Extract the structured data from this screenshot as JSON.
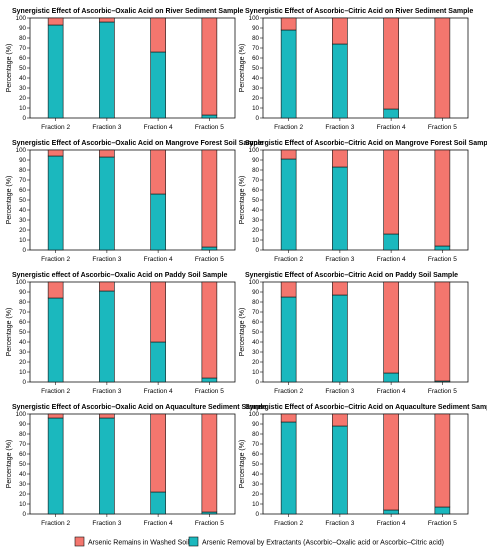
{
  "colors": {
    "remain": "#f4766e",
    "removal": "#1bb8be",
    "frame": "#111111"
  },
  "legend": {
    "remain_label": "Arsenic Remains in Washed Soils",
    "removal_label": "Arsenic Removal by Extractants (Ascorbic–Oxalic acid or Ascorbic–Citric acid)"
  },
  "chart_data": [
    {
      "type": "bar",
      "stacked": true,
      "title": "Synergistic Effect of Ascorbic–Oxalic Acid on River Sediment Sample",
      "ylabel": "Percentage (%)",
      "ylim": [
        0,
        100
      ],
      "yticks": [
        0,
        10,
        20,
        30,
        40,
        50,
        60,
        70,
        80,
        90,
        100
      ],
      "categories": [
        "Fraction 2",
        "Fraction 3",
        "Fraction 4",
        "Fraction 5"
      ],
      "series": [
        {
          "name": "Arsenic Removal by Extractants (Ascorbic–Oxalic acid or Ascorbic–Citric acid)",
          "values": [
            93,
            96,
            66,
            3
          ]
        },
        {
          "name": "Arsenic Remains in Washed Soils",
          "values": [
            7,
            4,
            34,
            97
          ]
        }
      ]
    },
    {
      "type": "bar",
      "stacked": true,
      "title": "Synergistic Effect of Ascorbic–Citric Acid on River Sediment Sample",
      "ylabel": "Percentage (%)",
      "ylim": [
        0,
        100
      ],
      "yticks": [
        0,
        10,
        20,
        30,
        40,
        50,
        60,
        70,
        80,
        90,
        100
      ],
      "categories": [
        "Fraction 2",
        "Fraction 3",
        "Fraction 4",
        "Fraction 5"
      ],
      "series": [
        {
          "name": "Arsenic Removal by Extractants (Ascorbic–Oxalic acid or Ascorbic–Citric acid)",
          "values": [
            88,
            74,
            9,
            0
          ]
        },
        {
          "name": "Arsenic Remains in Washed Soils",
          "values": [
            12,
            26,
            91,
            100
          ]
        }
      ]
    },
    {
      "type": "bar",
      "stacked": true,
      "title": "Synergistic Effect of Ascorbic–Oxalic Acid on Mangrove Forest Soil Sample",
      "ylabel": "Percentage (%)",
      "ylim": [
        0,
        100
      ],
      "yticks": [
        0,
        10,
        20,
        30,
        40,
        50,
        60,
        70,
        80,
        90,
        100
      ],
      "categories": [
        "Fraction 2",
        "Fraction 3",
        "Fraction 4",
        "Fraction 5"
      ],
      "series": [
        {
          "name": "Arsenic Removal by Extractants (Ascorbic–Oxalic acid or Ascorbic–Citric acid)",
          "values": [
            94,
            93,
            56,
            3
          ]
        },
        {
          "name": "Arsenic Remains in Washed Soils",
          "values": [
            6,
            7,
            44,
            97
          ]
        }
      ]
    },
    {
      "type": "bar",
      "stacked": true,
      "title": "Synergistic Effect of Ascorbic–Citric Acid on Mangrove Forest Soil Sample",
      "ylabel": "Percentage (%)",
      "ylim": [
        0,
        100
      ],
      "yticks": [
        0,
        10,
        20,
        30,
        40,
        50,
        60,
        70,
        80,
        90,
        100
      ],
      "categories": [
        "Fraction 2",
        "Fraction 3",
        "Fraction 4",
        "Fraction 5"
      ],
      "series": [
        {
          "name": "Arsenic Removal by Extractants (Ascorbic–Oxalic acid or Ascorbic–Citric acid)",
          "values": [
            91,
            83,
            16,
            4
          ]
        },
        {
          "name": "Arsenic Remains in Washed Soils",
          "values": [
            9,
            17,
            84,
            96
          ]
        }
      ]
    },
    {
      "type": "bar",
      "stacked": true,
      "title": "Synergistic effect of Ascorbic–Oxalic Acid on Paddy Soil Sample",
      "ylabel": "Percentage (%)",
      "ylim": [
        0,
        100
      ],
      "yticks": [
        0,
        10,
        20,
        30,
        40,
        50,
        60,
        70,
        80,
        90,
        100
      ],
      "categories": [
        "Fraction 2",
        "Fraction 3",
        "Fraction 4",
        "Fraction 5"
      ],
      "series": [
        {
          "name": "Arsenic Removal by Extractants (Ascorbic–Oxalic acid or Ascorbic–Citric acid)",
          "values": [
            84,
            91,
            40,
            4
          ]
        },
        {
          "name": "Arsenic Remains in Washed Soils",
          "values": [
            16,
            9,
            60,
            96
          ]
        }
      ]
    },
    {
      "type": "bar",
      "stacked": true,
      "title": "Synergistic Effect of Ascorbic–Citric Acid on Paddy Soil Sample",
      "ylabel": "Percentage (%)",
      "ylim": [
        0,
        100
      ],
      "yticks": [
        0,
        10,
        20,
        30,
        40,
        50,
        60,
        70,
        80,
        90,
        100
      ],
      "categories": [
        "Fraction 2",
        "Fraction 3",
        "Fraction 4",
        "Fraction 5"
      ],
      "series": [
        {
          "name": "Arsenic Removal by Extractants (Ascorbic–Oxalic acid or Ascorbic–Citric acid)",
          "values": [
            85,
            87,
            9,
            1
          ]
        },
        {
          "name": "Arsenic Remains in Washed Soils",
          "values": [
            15,
            13,
            91,
            99
          ]
        }
      ]
    },
    {
      "type": "bar",
      "stacked": true,
      "title": "Synergistic Effect of Ascorbic–Oxalic Acid on Aquaculture Sediment Sample",
      "ylabel": "Percentage (%)",
      "ylim": [
        0,
        100
      ],
      "yticks": [
        0,
        10,
        20,
        30,
        40,
        50,
        60,
        70,
        80,
        90,
        100
      ],
      "categories": [
        "Fraction 2",
        "Fraction 3",
        "Fraction 4",
        "Fraction 5"
      ],
      "series": [
        {
          "name": "Arsenic Removal by Extractants (Ascorbic–Oxalic acid or Ascorbic–Citric acid)",
          "values": [
            96,
            96,
            22,
            2
          ]
        },
        {
          "name": "Arsenic Remains in Washed Soils",
          "values": [
            4,
            4,
            78,
            98
          ]
        }
      ]
    },
    {
      "type": "bar",
      "stacked": true,
      "title": "Synergistic Effect of Ascorbic–Citric Acid on Aquaculture Sediment Sample",
      "ylabel": "Percentage (%)",
      "ylim": [
        0,
        100
      ],
      "yticks": [
        0,
        10,
        20,
        30,
        40,
        50,
        60,
        70,
        80,
        90,
        100
      ],
      "categories": [
        "Fraction 2",
        "Fraction 3",
        "Fraction 4",
        "Fraction 5"
      ],
      "series": [
        {
          "name": "Arsenic Removal by Extractants (Ascorbic–Oxalic acid or Ascorbic–Citric acid)",
          "values": [
            92,
            88,
            4,
            7
          ]
        },
        {
          "name": "Arsenic Remains in Washed Soils",
          "values": [
            8,
            12,
            96,
            93
          ]
        }
      ]
    }
  ]
}
